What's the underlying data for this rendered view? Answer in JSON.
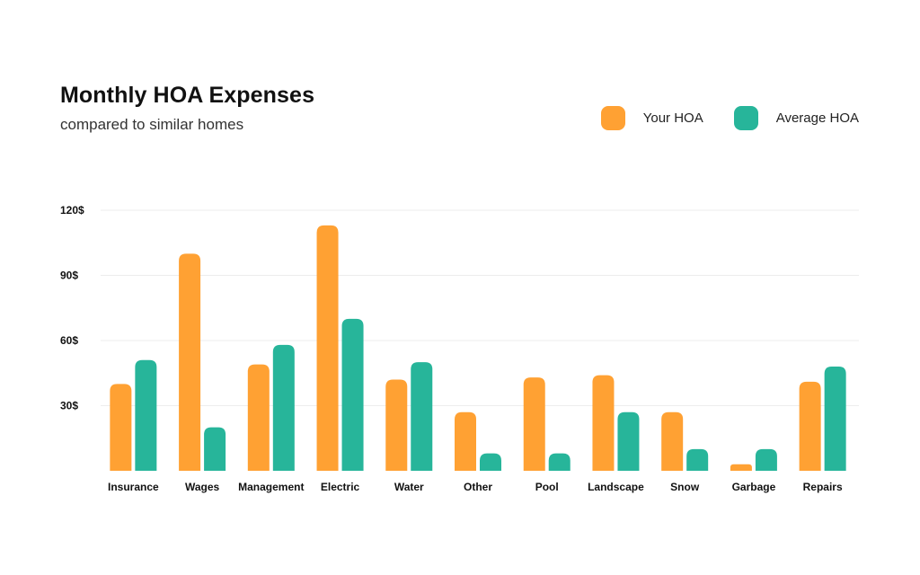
{
  "title": "Monthly HOA Expenses",
  "subtitle": "compared to similar homes",
  "colors": {
    "your": "#FFA133",
    "average": "#27B59A",
    "grid": "#EDEDED"
  },
  "chart_data": {
    "type": "bar",
    "title": "Monthly HOA Expenses",
    "subtitle": "compared to similar homes",
    "categories": [
      "Insurance",
      "Wages",
      "Management",
      "Electric",
      "Water",
      "Other",
      "Pool",
      "Landscape",
      "Snow",
      "Garbage",
      "Repairs"
    ],
    "series": [
      {
        "name": "Your HOA",
        "color": "#FFA133",
        "values": [
          40,
          100,
          49,
          113,
          42,
          27,
          43,
          44,
          27,
          3,
          41
        ]
      },
      {
        "name": "Average HOA",
        "color": "#27B59A",
        "values": [
          51,
          20,
          58,
          70,
          50,
          8,
          8,
          27,
          10,
          10,
          48
        ]
      }
    ],
    "yticks": [
      30,
      60,
      90,
      120
    ],
    "ytick_labels": [
      "30$",
      "60$",
      "90$",
      "120$"
    ],
    "ylim": [
      0,
      120
    ],
    "grid": true,
    "legend_position": "top-right"
  }
}
